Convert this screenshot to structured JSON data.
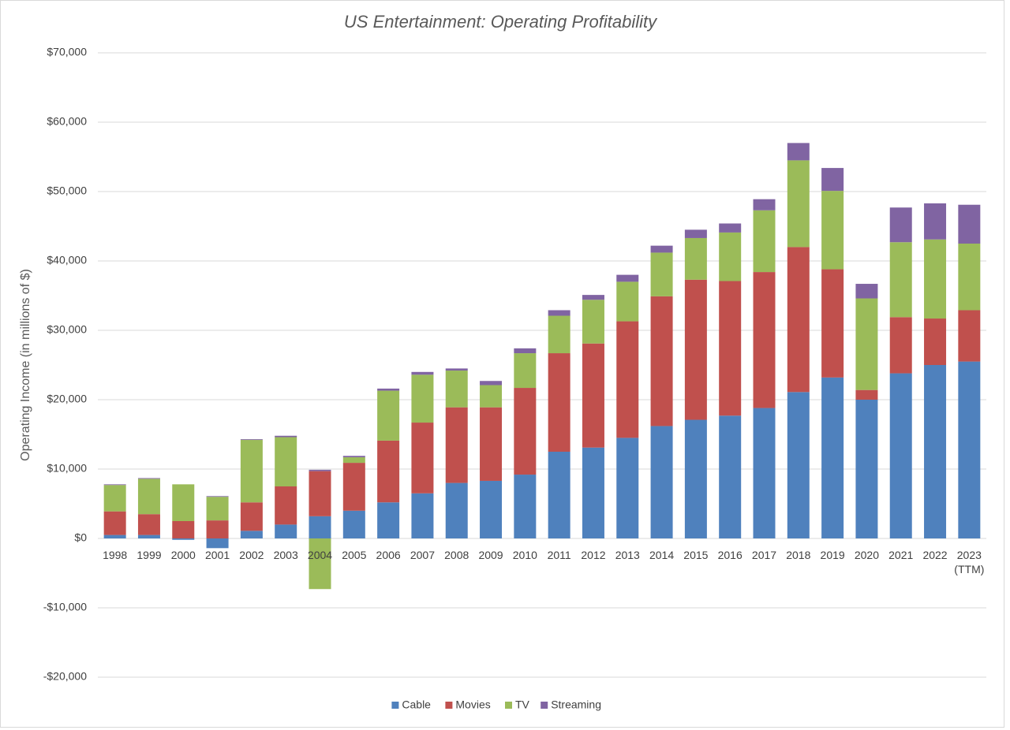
{
  "chart_data": {
    "type": "stacked-bar",
    "title": "US Entertainment: Operating Profitability",
    "ylabel": "Operating Income (in millions of $)",
    "categories": [
      "1998",
      "1999",
      "2000",
      "2001",
      "2002",
      "2003",
      "2004",
      "2005",
      "2006",
      "2007",
      "2008",
      "2009",
      "2010",
      "2011",
      "2012",
      "2013",
      "2014",
      "2015",
      "2016",
      "2017",
      "2018",
      "2019",
      "2020",
      "2021",
      "2022",
      "2023 (TTM)"
    ],
    "series": [
      {
        "name": "Cable",
        "color": "#4f81bd",
        "values": [
          500,
          500,
          -200,
          -1400,
          1100,
          2000,
          3200,
          4000,
          5200,
          6500,
          8000,
          8300,
          9200,
          12500,
          13100,
          14500,
          16200,
          17100,
          17700,
          18800,
          21100,
          23200,
          20000,
          23800,
          25000,
          25500
        ]
      },
      {
        "name": "Movies",
        "color": "#c0504d",
        "values": [
          3400,
          3000,
          2500,
          2600,
          4100,
          5500,
          6500,
          6900,
          8900,
          10200,
          10900,
          10600,
          12500,
          14200,
          15000,
          16800,
          18700,
          20200,
          19400,
          19600,
          20900,
          15600,
          1400,
          8100,
          6700,
          7400
        ]
      },
      {
        "name": "TV",
        "color": "#9bbb59",
        "values": [
          3800,
          5100,
          5300,
          3400,
          9000,
          7100,
          -7300,
          800,
          7200,
          6900,
          5300,
          3200,
          5000,
          5400,
          6300,
          5700,
          6300,
          6000,
          7000,
          8900,
          12500,
          11300,
          13200,
          10800,
          11400,
          9600
        ]
      },
      {
        "name": "Streaming",
        "color": "#8064a2",
        "values": [
          100,
          100,
          0,
          100,
          100,
          200,
          200,
          200,
          300,
          400,
          300,
          600,
          700,
          800,
          700,
          1000,
          1000,
          1200,
          1300,
          1600,
          2500,
          3300,
          2100,
          5000,
          5200,
          5600
        ]
      }
    ],
    "ylim": [
      -20000,
      70000
    ],
    "yticks": [
      {
        "value": -20000,
        "label": "-$20,000"
      },
      {
        "value": -10000,
        "label": "-$10,000"
      },
      {
        "value": 0,
        "label": "$0"
      },
      {
        "value": 10000,
        "label": "$10,000"
      },
      {
        "value": 20000,
        "label": "$20,000"
      },
      {
        "value": 30000,
        "label": "$30,000"
      },
      {
        "value": 40000,
        "label": "$40,000"
      },
      {
        "value": 50000,
        "label": "$50,000"
      },
      {
        "value": 60000,
        "label": "$60,000"
      },
      {
        "value": 70000,
        "label": "$70,000"
      }
    ],
    "grid": true,
    "legend": "bottom"
  }
}
